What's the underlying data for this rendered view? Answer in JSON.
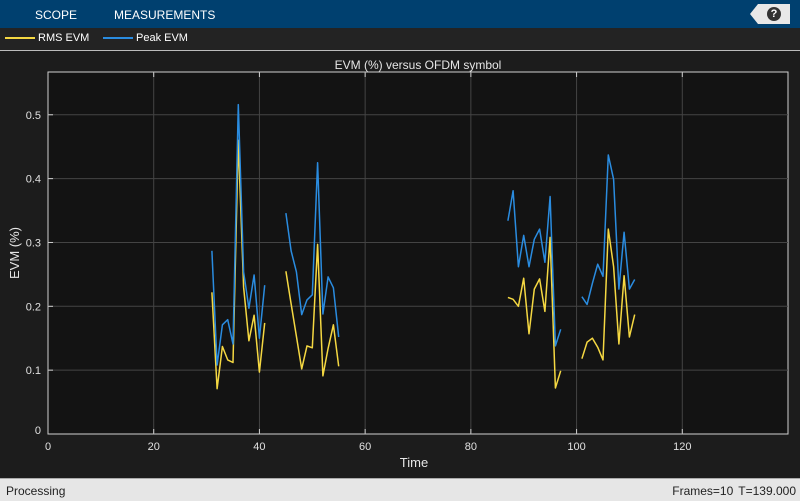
{
  "toolstrip": {
    "tabs": [
      "SCOPE",
      "MEASUREMENTS"
    ],
    "help_label": "?"
  },
  "legend": [
    {
      "label": "RMS EVM",
      "color": "#f5d842"
    },
    {
      "label": "Peak EVM",
      "color": "#2a8ce0"
    }
  ],
  "status": {
    "left": "Processing",
    "frames": "Frames=10",
    "time": "T=139.000"
  },
  "chart_data": {
    "type": "line",
    "title": "EVM (%) versus OFDM symbol",
    "xlabel": "Time",
    "ylabel": "EVM (%)",
    "xlim": [
      0,
      140
    ],
    "ylim": [
      0,
      0.567
    ],
    "xticks": [
      "0",
      "20",
      "40",
      "60",
      "80",
      "100",
      "120"
    ],
    "yticks": [
      "0",
      "0.1",
      "0.2",
      "0.3",
      "0.4",
      "0.5"
    ],
    "grid": true,
    "series": [
      {
        "name": "RMS EVM",
        "color": "#f5d842",
        "segments": [
          {
            "x_start": 31,
            "y": [
              0.222,
              0.071,
              0.137,
              0.116,
              0.112,
              0.46,
              0.23,
              0.146,
              0.186,
              0.097,
              0.174
            ]
          },
          {
            "x_start": 45,
            "y": [
              0.255,
              0.204,
              0.153,
              0.102,
              0.138,
              0.135,
              0.297,
              0.091,
              0.134,
              0.171,
              0.106
            ]
          },
          {
            "x_start": 87,
            "y": [
              0.214,
              0.211,
              0.2,
              0.244,
              0.157,
              0.227,
              0.243,
              0.192,
              0.308,
              0.072,
              0.099
            ]
          },
          {
            "x_start": 101,
            "y": [
              0.118,
              0.144,
              0.15,
              0.136,
              0.116,
              0.321,
              0.262,
              0.141,
              0.248,
              0.152,
              0.187
            ]
          }
        ]
      },
      {
        "name": "Peak EVM",
        "color": "#2a8ce0",
        "segments": [
          {
            "x_start": 31,
            "y": [
              0.287,
              0.108,
              0.171,
              0.179,
              0.141,
              0.516,
              0.254,
              0.197,
              0.249,
              0.15,
              0.233
            ]
          },
          {
            "x_start": 45,
            "y": [
              0.346,
              0.287,
              0.254,
              0.187,
              0.21,
              0.218,
              0.425,
              0.188,
              0.246,
              0.229,
              0.152
            ]
          },
          {
            "x_start": 87,
            "y": [
              0.334,
              0.381,
              0.262,
              0.311,
              0.262,
              0.305,
              0.321,
              0.269,
              0.372,
              0.138,
              0.164
            ]
          },
          {
            "x_start": 101,
            "y": [
              0.215,
              0.203,
              0.236,
              0.266,
              0.247,
              0.437,
              0.399,
              0.227,
              0.316,
              0.227,
              0.242
            ]
          }
        ]
      }
    ]
  }
}
